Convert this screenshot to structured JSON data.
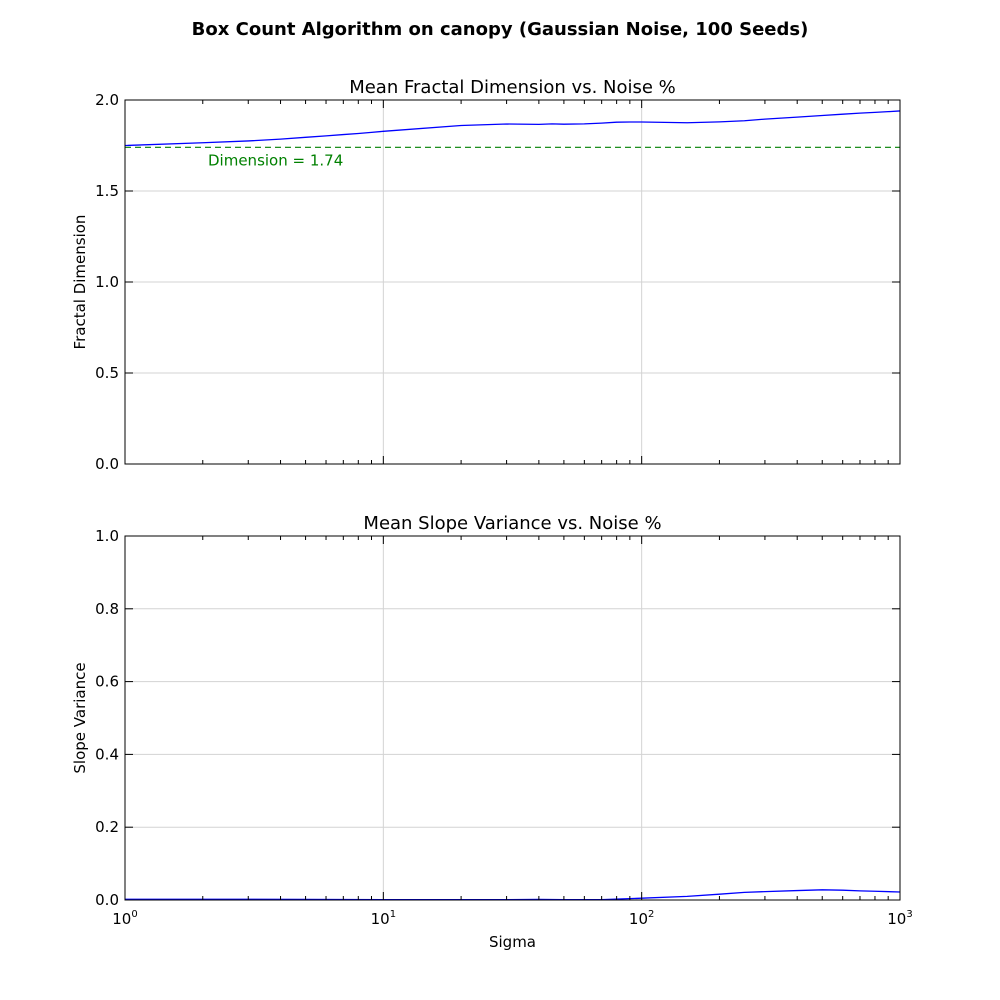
{
  "figure": {
    "suptitle": "Box Count Algorithm on canopy (Gaussian Noise, 100 Seeds)"
  },
  "chart_data": [
    {
      "type": "line",
      "title": "Mean Fractal Dimension vs. Noise %",
      "xlabel": "",
      "ylabel": "Fractal Dimension",
      "xscale": "log",
      "xlim": [
        1,
        1000
      ],
      "ylim": [
        0.0,
        2.0
      ],
      "yticks": [
        "0.0",
        "0.5",
        "1.0",
        "1.5",
        "2.0"
      ],
      "grid": true,
      "series": [
        {
          "color": "#0000ff",
          "x": [
            1,
            2,
            3,
            4,
            5,
            6,
            7,
            8,
            9,
            10,
            20,
            30,
            40,
            45,
            50,
            60,
            70,
            80,
            90,
            100,
            150,
            200,
            250,
            300,
            400,
            500,
            600,
            700,
            800,
            900,
            1000
          ],
          "y": [
            1.75,
            1.765,
            1.775,
            1.785,
            1.795,
            1.803,
            1.81,
            1.816,
            1.822,
            1.828,
            1.86,
            1.868,
            1.866,
            1.869,
            1.867,
            1.869,
            1.873,
            1.878,
            1.879,
            1.879,
            1.875,
            1.88,
            1.886,
            1.895,
            1.906,
            1.915,
            1.922,
            1.928,
            1.932,
            1.936,
            1.94
          ]
        }
      ],
      "reference_line": {
        "y": 1.74,
        "color": "#008000",
        "style": "dashed",
        "label": "Dimension = 1.74"
      }
    },
    {
      "type": "line",
      "title": "Mean Slope Variance vs. Noise %",
      "xlabel": "Sigma",
      "ylabel": "Slope Variance",
      "xscale": "log",
      "xlim": [
        1,
        1000
      ],
      "ylim": [
        0.0,
        1.0
      ],
      "xticks": [
        {
          "base": "10",
          "exp": "0"
        },
        {
          "base": "10",
          "exp": "1"
        },
        {
          "base": "10",
          "exp": "2"
        },
        {
          "base": "10",
          "exp": "3"
        }
      ],
      "yticks": [
        "0.0",
        "0.2",
        "0.4",
        "0.6",
        "0.8",
        "1.0"
      ],
      "grid": true,
      "series": [
        {
          "color": "#0000ff",
          "x": [
            1,
            2,
            3,
            5,
            10,
            20,
            30,
            40,
            50,
            70,
            100,
            150,
            200,
            250,
            300,
            400,
            500,
            600,
            700,
            800,
            1000
          ],
          "y": [
            0.002,
            0.002,
            0.002,
            0.0015,
            0.001,
            0.001,
            0.001,
            0.0015,
            0.001,
            0.001,
            0.005,
            0.01,
            0.016,
            0.021,
            0.023,
            0.026,
            0.028,
            0.027,
            0.025,
            0.024,
            0.022
          ]
        }
      ]
    }
  ]
}
